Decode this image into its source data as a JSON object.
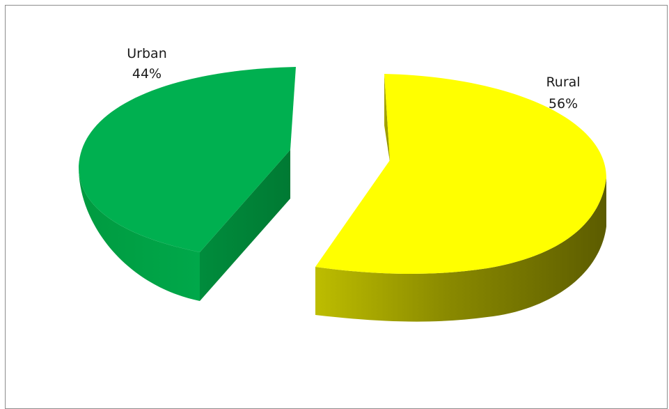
{
  "chart_data": {
    "type": "pie",
    "title": "",
    "style": "3d-exploded",
    "legend": "none",
    "categories": [
      "Urban",
      "Rural"
    ],
    "values": [
      44,
      56
    ],
    "unit": "%",
    "slices": [
      {
        "name": "Urban",
        "value": 44,
        "value_label": "44%",
        "color": "#00b050"
      },
      {
        "name": "Rural",
        "value": 56,
        "value_label": "56%",
        "color": "#ffff00"
      }
    ]
  }
}
